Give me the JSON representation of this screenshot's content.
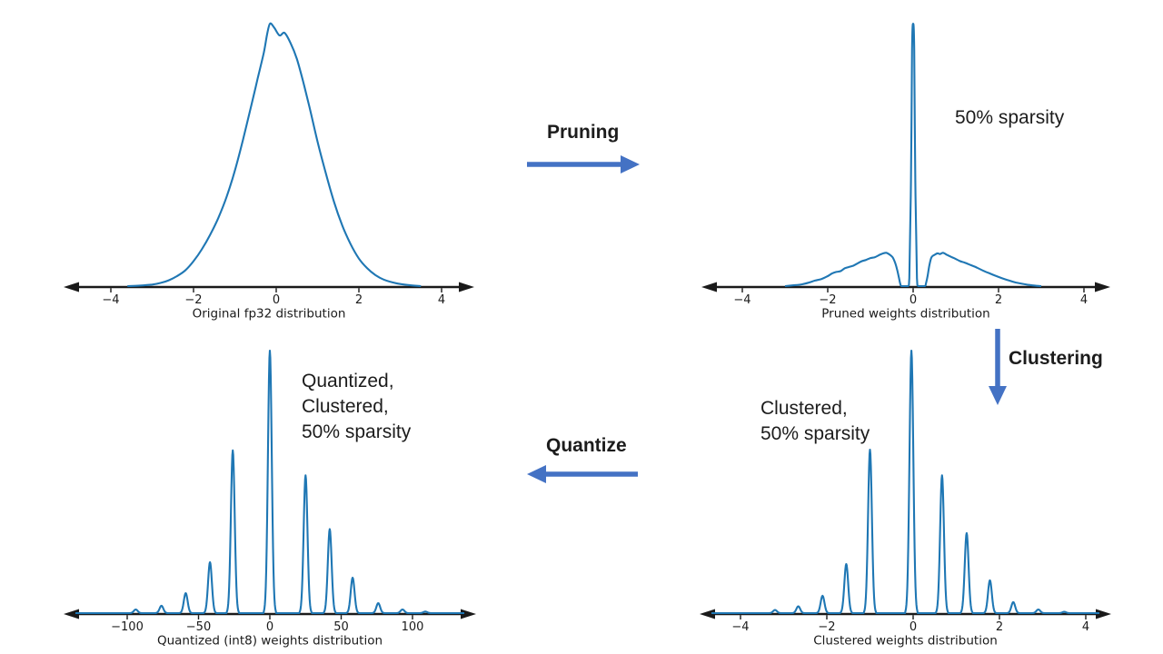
{
  "colors": {
    "curve": "#1f77b4",
    "arrow": "#4472c4",
    "axis": "#1a1a1a",
    "text": "#1c1c1c"
  },
  "annotations": {
    "pruning_label": "Pruning",
    "clustering_label": "Clustering",
    "quantize_label": "Quantize",
    "pruned_sparsity_label": "50% sparsity",
    "clustered_sparsity_lines": [
      "Clustered,",
      "50% sparsity"
    ],
    "quantized_sparsity_lines": [
      "Quantized,",
      "Clustered,",
      "50% sparsity"
    ]
  },
  "chart_data": [
    {
      "id": "original",
      "type": "line",
      "kind": "kde-density",
      "xlabel": "Original fp32 distribution",
      "x_ticks": [
        -4,
        -2,
        0,
        2,
        4
      ],
      "x_range": [
        -5,
        4.8
      ],
      "grid": false,
      "legend": null,
      "curve_points": [
        [
          -3.6,
          0.0
        ],
        [
          -3.3,
          0.002
        ],
        [
          -3.0,
          0.006
        ],
        [
          -2.8,
          0.012
        ],
        [
          -2.6,
          0.022
        ],
        [
          -2.4,
          0.038
        ],
        [
          -2.2,
          0.06
        ],
        [
          -2.0,
          0.095
        ],
        [
          -1.8,
          0.14
        ],
        [
          -1.6,
          0.195
        ],
        [
          -1.4,
          0.26
        ],
        [
          -1.2,
          0.34
        ],
        [
          -1.0,
          0.44
        ],
        [
          -0.8,
          0.56
        ],
        [
          -0.6,
          0.69
        ],
        [
          -0.45,
          0.79
        ],
        [
          -0.3,
          0.89
        ],
        [
          -0.22,
          0.96
        ],
        [
          -0.15,
          1.0
        ],
        [
          -0.05,
          0.985
        ],
        [
          0.08,
          0.955
        ],
        [
          0.2,
          0.965
        ],
        [
          0.35,
          0.925
        ],
        [
          0.5,
          0.865
        ],
        [
          0.65,
          0.78
        ],
        [
          0.8,
          0.685
        ],
        [
          1.0,
          0.55
        ],
        [
          1.2,
          0.43
        ],
        [
          1.4,
          0.32
        ],
        [
          1.6,
          0.23
        ],
        [
          1.8,
          0.16
        ],
        [
          2.0,
          0.105
        ],
        [
          2.2,
          0.068
        ],
        [
          2.4,
          0.042
        ],
        [
          2.6,
          0.025
        ],
        [
          2.9,
          0.011
        ],
        [
          3.2,
          0.004
        ],
        [
          3.5,
          0.0
        ]
      ]
    },
    {
      "id": "pruned",
      "type": "line",
      "kind": "kde-density",
      "xlabel": "Pruned weights distribution",
      "x_ticks": [
        -4,
        -2,
        0,
        2,
        4
      ],
      "x_range": [
        -5,
        4.6
      ],
      "grid": false,
      "legend": null,
      "curve_points": [
        [
          -3.0,
          0.0
        ],
        [
          -2.8,
          0.003
        ],
        [
          -2.6,
          0.007
        ],
        [
          -2.45,
          0.013
        ],
        [
          -2.3,
          0.021
        ],
        [
          -2.15,
          0.027
        ],
        [
          -2.0,
          0.038
        ],
        [
          -1.9,
          0.048
        ],
        [
          -1.8,
          0.054
        ],
        [
          -1.7,
          0.057
        ],
        [
          -1.6,
          0.068
        ],
        [
          -1.5,
          0.073
        ],
        [
          -1.4,
          0.078
        ],
        [
          -1.3,
          0.087
        ],
        [
          -1.2,
          0.095
        ],
        [
          -1.1,
          0.1
        ],
        [
          -1.0,
          0.107
        ],
        [
          -0.9,
          0.11
        ],
        [
          -0.8,
          0.118
        ],
        [
          -0.72,
          0.124
        ],
        [
          -0.63,
          0.127
        ],
        [
          -0.55,
          0.12
        ],
        [
          -0.48,
          0.11
        ],
        [
          -0.42,
          0.088
        ],
        [
          -0.37,
          0.06
        ],
        [
          -0.33,
          0.03
        ],
        [
          -0.3,
          0.008
        ],
        [
          -0.27,
          0.0
        ],
        [
          -0.12,
          0.0
        ],
        [
          -0.09,
          0.03
        ],
        [
          -0.05,
          0.4
        ],
        [
          -0.025,
          0.9
        ],
        [
          0.0,
          1.0
        ],
        [
          0.025,
          0.9
        ],
        [
          0.05,
          0.4
        ],
        [
          0.09,
          0.03
        ],
        [
          0.12,
          0.0
        ],
        [
          0.27,
          0.0
        ],
        [
          0.3,
          0.01
        ],
        [
          0.34,
          0.04
        ],
        [
          0.38,
          0.08
        ],
        [
          0.43,
          0.11
        ],
        [
          0.5,
          0.119
        ],
        [
          0.57,
          0.125
        ],
        [
          0.63,
          0.122
        ],
        [
          0.7,
          0.127
        ],
        [
          0.78,
          0.12
        ],
        [
          0.88,
          0.112
        ],
        [
          0.98,
          0.105
        ],
        [
          1.1,
          0.095
        ],
        [
          1.2,
          0.09
        ],
        [
          1.35,
          0.08
        ],
        [
          1.5,
          0.07
        ],
        [
          1.65,
          0.058
        ],
        [
          1.8,
          0.048
        ],
        [
          1.95,
          0.038
        ],
        [
          2.1,
          0.029
        ],
        [
          2.25,
          0.021
        ],
        [
          2.4,
          0.014
        ],
        [
          2.55,
          0.009
        ],
        [
          2.7,
          0.005
        ],
        [
          2.85,
          0.002
        ],
        [
          3.0,
          0.0
        ]
      ]
    },
    {
      "id": "clustered",
      "type": "line",
      "kind": "spike-density",
      "xlabel": "Clustered weights distribution",
      "x_ticks": [
        -4,
        -2,
        0,
        2,
        4
      ],
      "x_range": [
        -4.95,
        4.6
      ],
      "grid": false,
      "legend": null,
      "spikes": [
        [
          -3.2,
          0.012
        ],
        [
          -2.66,
          0.026
        ],
        [
          -2.1,
          0.066
        ],
        [
          -1.55,
          0.187
        ],
        [
          -1.0,
          0.623
        ],
        [
          -0.04,
          1.0
        ],
        [
          0.67,
          0.525
        ],
        [
          1.24,
          0.305
        ],
        [
          1.78,
          0.125
        ],
        [
          2.32,
          0.042
        ],
        [
          2.9,
          0.014
        ],
        [
          3.5,
          0.005
        ]
      ]
    },
    {
      "id": "quantized",
      "type": "line",
      "kind": "spike-density",
      "xlabel": "Quantized (int8) weights distribution",
      "x_ticks": [
        -100,
        -50,
        0,
        50,
        100
      ],
      "x_range": [
        -145,
        145
      ],
      "grid": false,
      "legend": null,
      "spikes": [
        [
          -94,
          0.014
        ],
        [
          -76,
          0.028
        ],
        [
          -59,
          0.076
        ],
        [
          -42,
          0.194
        ],
        [
          -26,
          0.62
        ],
        [
          0,
          1.0
        ],
        [
          25,
          0.525
        ],
        [
          42,
          0.32
        ],
        [
          58,
          0.135
        ],
        [
          76,
          0.038
        ],
        [
          93,
          0.014
        ],
        [
          109,
          0.006
        ]
      ]
    }
  ]
}
